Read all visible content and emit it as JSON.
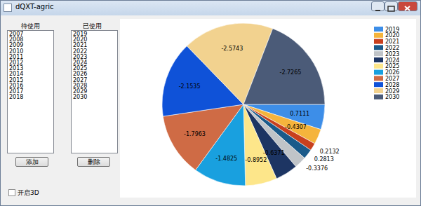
{
  "window": {
    "title": "dQXT-agric"
  },
  "available": {
    "label": "待使用",
    "items": [
      "2007",
      "2008",
      "2009",
      "2010",
      "2011",
      "2012",
      "2013",
      "2014",
      "2015",
      "2016",
      "2017",
      "2018"
    ]
  },
  "used": {
    "label": "已使用",
    "items": [
      "2019",
      "2020",
      "2021",
      "2022",
      "2023",
      "2024",
      "2025",
      "2026",
      "2027",
      "2028",
      "2029",
      "2030"
    ]
  },
  "buttons": {
    "add": "添加",
    "remove": "删除"
  },
  "checkbox": {
    "label": "开启3D",
    "checked": false
  },
  "chart_data": {
    "type": "pie",
    "categories": [
      "2019",
      "2020",
      "2021",
      "2022",
      "2023",
      "2024",
      "2025",
      "2026",
      "2027",
      "2028",
      "2029",
      "2030"
    ],
    "values": [
      0.7111,
      -0.4307,
      0.2132,
      0.2813,
      -0.3376,
      -0.6371,
      -0.8952,
      -1.4825,
      -1.7963,
      -2.1535,
      -2.5743,
      -2.7265
    ],
    "colors": [
      "#3d8ee8",
      "#f5b43c",
      "#c8401e",
      "#1a5a8a",
      "#c0c4c8",
      "#1d3563",
      "#fde68a",
      "#19a0df",
      "#cf6b45",
      "#0f52d8",
      "#f2d28f",
      "#4b5b78"
    ],
    "data_labels": true,
    "legend": "top-right"
  }
}
